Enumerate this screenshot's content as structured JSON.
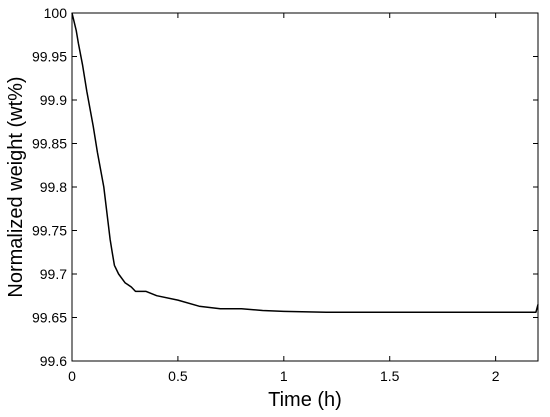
{
  "chart_data": {
    "type": "line",
    "title": "",
    "xlabel": "Time (h)",
    "ylabel": "Normalized weight (wt%)",
    "xlim": [
      0,
      2.2
    ],
    "ylim": [
      99.6,
      100
    ],
    "xticks": [
      0,
      0.5,
      1,
      1.5,
      2
    ],
    "xtick_labels": [
      "0",
      "0.5",
      "1",
      "1.5",
      "2"
    ],
    "yticks": [
      99.6,
      99.65,
      99.7,
      99.75,
      99.8,
      99.85,
      99.9,
      99.95,
      100
    ],
    "ytick_labels": [
      "99.6",
      "99.65",
      "99.7",
      "99.75",
      "99.8",
      "99.85",
      "99.9",
      "99.95",
      "100"
    ],
    "grid": false,
    "legend": "none",
    "colors": {
      "line": "#000000",
      "axes": "#000000",
      "background": "#ffffff"
    },
    "series": [
      {
        "x": [
          0,
          0.01,
          0.02,
          0.03,
          0.05,
          0.07,
          0.1,
          0.12,
          0.15,
          0.17,
          0.18,
          0.19,
          0.2,
          0.22,
          0.25,
          0.28,
          0.3,
          0.35,
          0.4,
          0.5,
          0.6,
          0.7,
          0.8,
          0.9,
          1,
          1.2,
          1.4,
          1.6,
          1.8,
          2,
          2.1,
          2.19,
          2.2
        ],
        "y": [
          100,
          99.99,
          99.98,
          99.965,
          99.94,
          99.91,
          99.87,
          99.84,
          99.8,
          99.76,
          99.74,
          99.725,
          99.71,
          99.7,
          99.69,
          99.685,
          99.68,
          99.68,
          99.675,
          99.67,
          99.663,
          99.66,
          99.66,
          99.658,
          99.657,
          99.656,
          99.656,
          99.656,
          99.656,
          99.656,
          99.656,
          99.656,
          99.665
        ]
      }
    ]
  }
}
